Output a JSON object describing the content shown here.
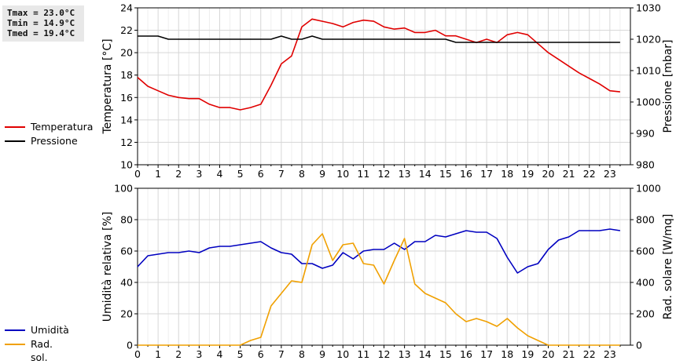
{
  "stats": {
    "tmax": "Tmax = 23.0°C",
    "tmin": "Tmin = 14.9°C",
    "tmed": "Tmed = 19.4°C"
  },
  "legend_top": [
    {
      "label": "Temperatura",
      "color": "#e00000"
    },
    {
      "label": "Pressione",
      "color": "#000000"
    }
  ],
  "legend_bottom": [
    {
      "label": "Umidità",
      "color": "#0000c0"
    },
    {
      "label": "Rad. sol.",
      "color": "#f0a000"
    }
  ],
  "chart_data": [
    {
      "type": "line",
      "x_ticks": [
        "0",
        "1",
        "2",
        "3",
        "4",
        "5",
        "6",
        "7",
        "8",
        "9",
        "10",
        "11",
        "12",
        "13",
        "14",
        "15",
        "16",
        "17",
        "18",
        "19",
        "20",
        "21",
        "22",
        "23"
      ],
      "xlim": [
        0,
        24
      ],
      "y_left": {
        "label": "Temperatura [°C]",
        "lim": [
          10,
          24
        ],
        "ticks": [
          "10",
          "12",
          "14",
          "16",
          "18",
          "20",
          "22",
          "24"
        ]
      },
      "y_right": {
        "label": "Pressione [mbar]",
        "lim": [
          980,
          1030
        ],
        "ticks": [
          "980",
          "990",
          "1000",
          "1010",
          "1020",
          "1030"
        ]
      },
      "grid": true,
      "series": [
        {
          "name": "Temperatura",
          "axis": "left",
          "color": "#e00000",
          "x": [
            0,
            0.5,
            1,
            1.5,
            2,
            2.5,
            3,
            3.5,
            4,
            4.5,
            5,
            5.5,
            6,
            6.5,
            7,
            7.5,
            8,
            8.5,
            9,
            9.5,
            10,
            10.5,
            11,
            11.5,
            12,
            12.5,
            13,
            13.5,
            14,
            14.5,
            15,
            15.5,
            16,
            16.5,
            17,
            17.5,
            18,
            18.5,
            19,
            19.5,
            20,
            20.5,
            21,
            21.5,
            22,
            22.5,
            23,
            23.5
          ],
          "y": [
            17.8,
            17.0,
            16.6,
            16.2,
            16.0,
            15.9,
            15.9,
            15.4,
            15.1,
            15.1,
            14.9,
            15.1,
            15.4,
            17.1,
            19.0,
            19.7,
            22.3,
            23.0,
            22.8,
            22.6,
            22.3,
            22.7,
            22.9,
            22.8,
            22.3,
            22.1,
            22.2,
            21.8,
            21.8,
            22.0,
            21.5,
            21.5,
            21.2,
            20.9,
            21.2,
            20.9,
            21.6,
            21.8,
            21.6,
            20.8,
            20.0,
            19.4,
            18.8,
            18.2,
            17.7,
            17.2,
            16.6,
            16.5
          ]
        },
        {
          "name": "Pressione",
          "axis": "right",
          "color": "#000000",
          "x": [
            0,
            1,
            1.5,
            2,
            3,
            4,
            5,
            6,
            6.5,
            7,
            7.5,
            8,
            8.5,
            9,
            10,
            11,
            12,
            13,
            14,
            15,
            15.5,
            16,
            17,
            18,
            19,
            20,
            21,
            22,
            23,
            23.5
          ],
          "y": [
            1021,
            1021,
            1020,
            1020,
            1020,
            1020,
            1020,
            1020,
            1020,
            1021,
            1020,
            1020,
            1021,
            1020,
            1020,
            1020,
            1020,
            1020,
            1020,
            1020,
            1019,
            1019,
            1019,
            1019,
            1019,
            1019,
            1019,
            1019,
            1019,
            1019
          ]
        }
      ]
    },
    {
      "type": "line",
      "x_ticks": [
        "0",
        "1",
        "2",
        "3",
        "4",
        "5",
        "6",
        "7",
        "8",
        "9",
        "10",
        "11",
        "12",
        "13",
        "14",
        "15",
        "16",
        "17",
        "18",
        "19",
        "20",
        "21",
        "22",
        "23"
      ],
      "xlim": [
        0,
        24
      ],
      "y_left": {
        "label": "Umidità relativa [%]",
        "lim": [
          0,
          100
        ],
        "ticks": [
          "0",
          "20",
          "40",
          "60",
          "80",
          "100"
        ]
      },
      "y_right": {
        "label": "Rad. solare [W/mq]",
        "lim": [
          0,
          1000
        ],
        "ticks": [
          "0",
          "200",
          "400",
          "600",
          "800",
          "1000"
        ]
      },
      "grid": true,
      "series": [
        {
          "name": "Umidità",
          "axis": "left",
          "color": "#0000c0",
          "x": [
            0,
            0.5,
            1,
            1.5,
            2,
            2.5,
            3,
            3.5,
            4,
            4.5,
            5,
            5.5,
            6,
            6.5,
            7,
            7.5,
            8,
            8.5,
            9,
            9.5,
            10,
            10.5,
            11,
            11.5,
            12,
            12.5,
            13,
            13.5,
            14,
            14.5,
            15,
            15.5,
            16,
            16.5,
            17,
            17.5,
            18,
            18.5,
            19,
            19.5,
            20,
            20.5,
            21,
            21.5,
            22,
            22.5,
            23,
            23.5
          ],
          "y": [
            50,
            57,
            58,
            59,
            59,
            60,
            59,
            62,
            63,
            63,
            64,
            65,
            66,
            62,
            59,
            58,
            52,
            52,
            49,
            51,
            59,
            55,
            60,
            61,
            61,
            65,
            61,
            66,
            66,
            70,
            69,
            71,
            73,
            72,
            72,
            68,
            56,
            46,
            50,
            52,
            61,
            67,
            69,
            73,
            73,
            73,
            74,
            73
          ]
        },
        {
          "name": "Rad. sol.",
          "axis": "right",
          "color": "#f0a000",
          "x": [
            0,
            1,
            2,
            3,
            4,
            5,
            5.5,
            6,
            6.5,
            7,
            7.5,
            8,
            8.5,
            9,
            9.5,
            10,
            10.5,
            11,
            11.5,
            12,
            12.5,
            13,
            13.5,
            14,
            14.5,
            15,
            15.5,
            16,
            16.5,
            17,
            17.5,
            18,
            18.5,
            19,
            19.5,
            20,
            21,
            22,
            23,
            23.5
          ],
          "y": [
            0,
            0,
            0,
            0,
            0,
            0,
            30,
            50,
            250,
            330,
            410,
            400,
            640,
            710,
            540,
            640,
            650,
            520,
            510,
            390,
            540,
            680,
            390,
            330,
            300,
            270,
            200,
            150,
            170,
            150,
            120,
            170,
            110,
            60,
            30,
            0,
            0,
            0,
            0,
            0
          ]
        }
      ]
    }
  ]
}
